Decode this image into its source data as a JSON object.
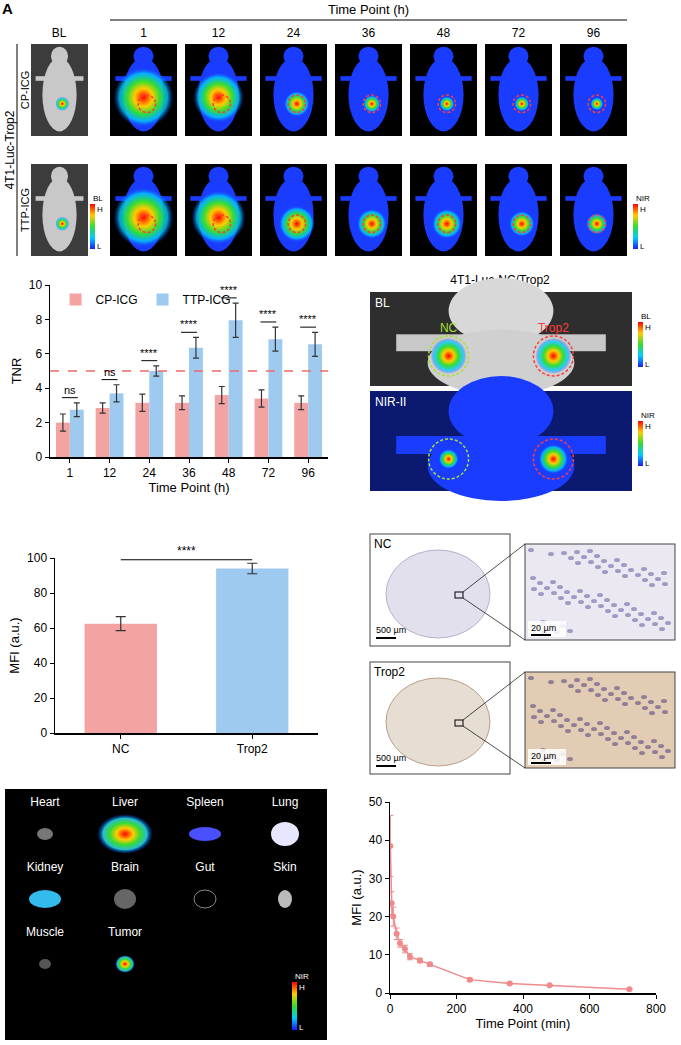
{
  "panel_letter": "A",
  "imaging": {
    "header": "Time Point (h)",
    "baseline_label": "BL",
    "time_points": [
      "1",
      "12",
      "24",
      "36",
      "48",
      "72",
      "96"
    ],
    "model": "4T1-Luc-Trop2",
    "rows": [
      "CP-ICG",
      "TTP-ICG"
    ],
    "bl_scale": {
      "title": "BL",
      "high": "H",
      "low": "L"
    },
    "nir_scale": {
      "title": "NIR",
      "high": "H",
      "low": "L"
    }
  },
  "dual_tumor": {
    "title": "4T1-Luc-NC/Trop2",
    "images": [
      "BL",
      "NIR-II"
    ],
    "tumors": [
      "NC",
      "Trop2"
    ],
    "bl_scale": {
      "title": "BL",
      "high": "H",
      "low": "L"
    },
    "nir_scale": {
      "title": "NIR",
      "high": "H",
      "low": "L"
    }
  },
  "histology": {
    "panels": [
      {
        "label": "NC",
        "scale_overview": "500 µm",
        "scale_zoom": "20 µm"
      },
      {
        "label": "Trop2",
        "scale_overview": "500 µm",
        "scale_zoom": "20 µm"
      }
    ]
  },
  "organs": {
    "labels": [
      "Heart",
      "Liver",
      "Spleen",
      "Lung",
      "Kidney",
      "Brain",
      "Gut",
      "Skin",
      "Muscle",
      "Tumor"
    ],
    "scale": {
      "title": "NIR",
      "high": "H",
      "low": "L"
    }
  },
  "chart_data": [
    {
      "type": "bar",
      "x_label": "Time Point (h)",
      "y_label": "TNR",
      "categories": [
        "1",
        "12",
        "24",
        "36",
        "48",
        "72",
        "96"
      ],
      "series": [
        {
          "name": "CP-ICG",
          "color": "#f4a3a3",
          "values": [
            2.0,
            2.85,
            3.15,
            3.15,
            3.6,
            3.4,
            3.15
          ],
          "errors": [
            0.5,
            0.3,
            0.5,
            0.4,
            0.5,
            0.5,
            0.4
          ]
        },
        {
          "name": "TTP-ICG",
          "color": "#9fcaf0",
          "values": [
            2.75,
            3.7,
            5.0,
            6.35,
            7.95,
            6.85,
            6.55
          ],
          "errors": [
            0.4,
            0.5,
            0.3,
            0.6,
            1.0,
            0.7,
            0.7
          ]
        }
      ],
      "significance": [
        "ns",
        "ns",
        "****",
        "****",
        "****",
        "****",
        "****"
      ],
      "reference_line": {
        "value": 5,
        "color": "#f06a6a",
        "line_style": "dash"
      },
      "ylim": [
        0,
        10
      ],
      "yticks": [
        0,
        2,
        4,
        6,
        8,
        10
      ],
      "grid": false,
      "legend": "top-left"
    },
    {
      "type": "bar",
      "y_label": "MFI (a.u.)",
      "categories": [
        "NC",
        "Trop2"
      ],
      "values": [
        62.5,
        94.0
      ],
      "errors": [
        4.0,
        3.0
      ],
      "colors": [
        "#f4a3a3",
        "#9fcaf0"
      ],
      "significance": "****",
      "ylim": [
        0,
        100
      ],
      "yticks": [
        0,
        20,
        40,
        60,
        80,
        100
      ],
      "grid": false
    },
    {
      "type": "line",
      "x_label": "Time Point (min)",
      "y_label": "MFI (a.u.)",
      "x": [
        1,
        5,
        10,
        20,
        30,
        45,
        60,
        90,
        120,
        240,
        360,
        480,
        720
      ],
      "values": [
        38.5,
        23.5,
        20.0,
        15.5,
        13.0,
        11.5,
        9.5,
        8.5,
        7.5,
        3.5,
        2.5,
        2.0,
        1.0
      ],
      "errors": [
        8.0,
        3.0,
        2.5,
        1.5,
        1.0,
        1.0,
        0.8,
        0.6,
        0.5,
        0.4,
        0.3,
        0.2,
        0.2
      ],
      "color": "#f08a8a",
      "marker": "circle",
      "line_style": "solid",
      "xlim": [
        0,
        800
      ],
      "xticks": [
        0,
        200,
        400,
        600,
        800
      ],
      "ylim": [
        0,
        50
      ],
      "yticks": [
        0,
        10,
        20,
        30,
        40,
        50
      ],
      "grid": false
    }
  ]
}
